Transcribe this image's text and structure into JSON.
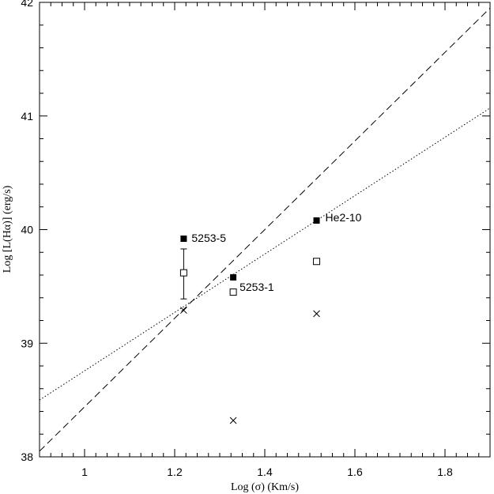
{
  "chart_data": {
    "type": "scatter",
    "title": "",
    "xlabel": "Log (σ) (Km/s)",
    "ylabel": "Log [L(Hα)] (erg/s)",
    "xlim": [
      0.9,
      1.9
    ],
    "ylim": [
      38,
      42
    ],
    "xticks": [
      1,
      1.2,
      1.4,
      1.6,
      1.8
    ],
    "xtick_labels": [
      "1",
      "1.2",
      "1.4",
      "1.6",
      "1.8"
    ],
    "yticks": [
      38,
      39,
      40,
      41,
      42
    ],
    "ytick_labels": [
      "38",
      "39",
      "40",
      "41",
      "42"
    ],
    "grid": false,
    "series": [
      {
        "marker": "filled-square",
        "points": [
          {
            "x": 1.22,
            "y": 39.92,
            "label": "5253-5"
          },
          {
            "x": 1.33,
            "y": 39.58,
            "label": "5253-1"
          },
          {
            "x": 1.515,
            "y": 40.08,
            "label": "He2-10"
          }
        ]
      },
      {
        "marker": "open-square",
        "points": [
          {
            "x": 1.22,
            "y": 39.62,
            "yerr_low": 39.39,
            "yerr_high": 39.83
          },
          {
            "x": 1.33,
            "y": 39.45
          },
          {
            "x": 1.515,
            "y": 39.72
          }
        ]
      },
      {
        "marker": "cross",
        "points": [
          {
            "x": 1.22,
            "y": 39.29
          },
          {
            "x": 1.33,
            "y": 38.32
          },
          {
            "x": 1.515,
            "y": 39.26
          }
        ]
      }
    ],
    "lines": [
      {
        "style": "dashed",
        "x": [
          0.9,
          1.9
        ],
        "y": [
          38.05,
          41.95
        ]
      },
      {
        "style": "dotted",
        "x": [
          0.9,
          1.9
        ],
        "y": [
          38.5,
          41.07
        ]
      }
    ]
  }
}
